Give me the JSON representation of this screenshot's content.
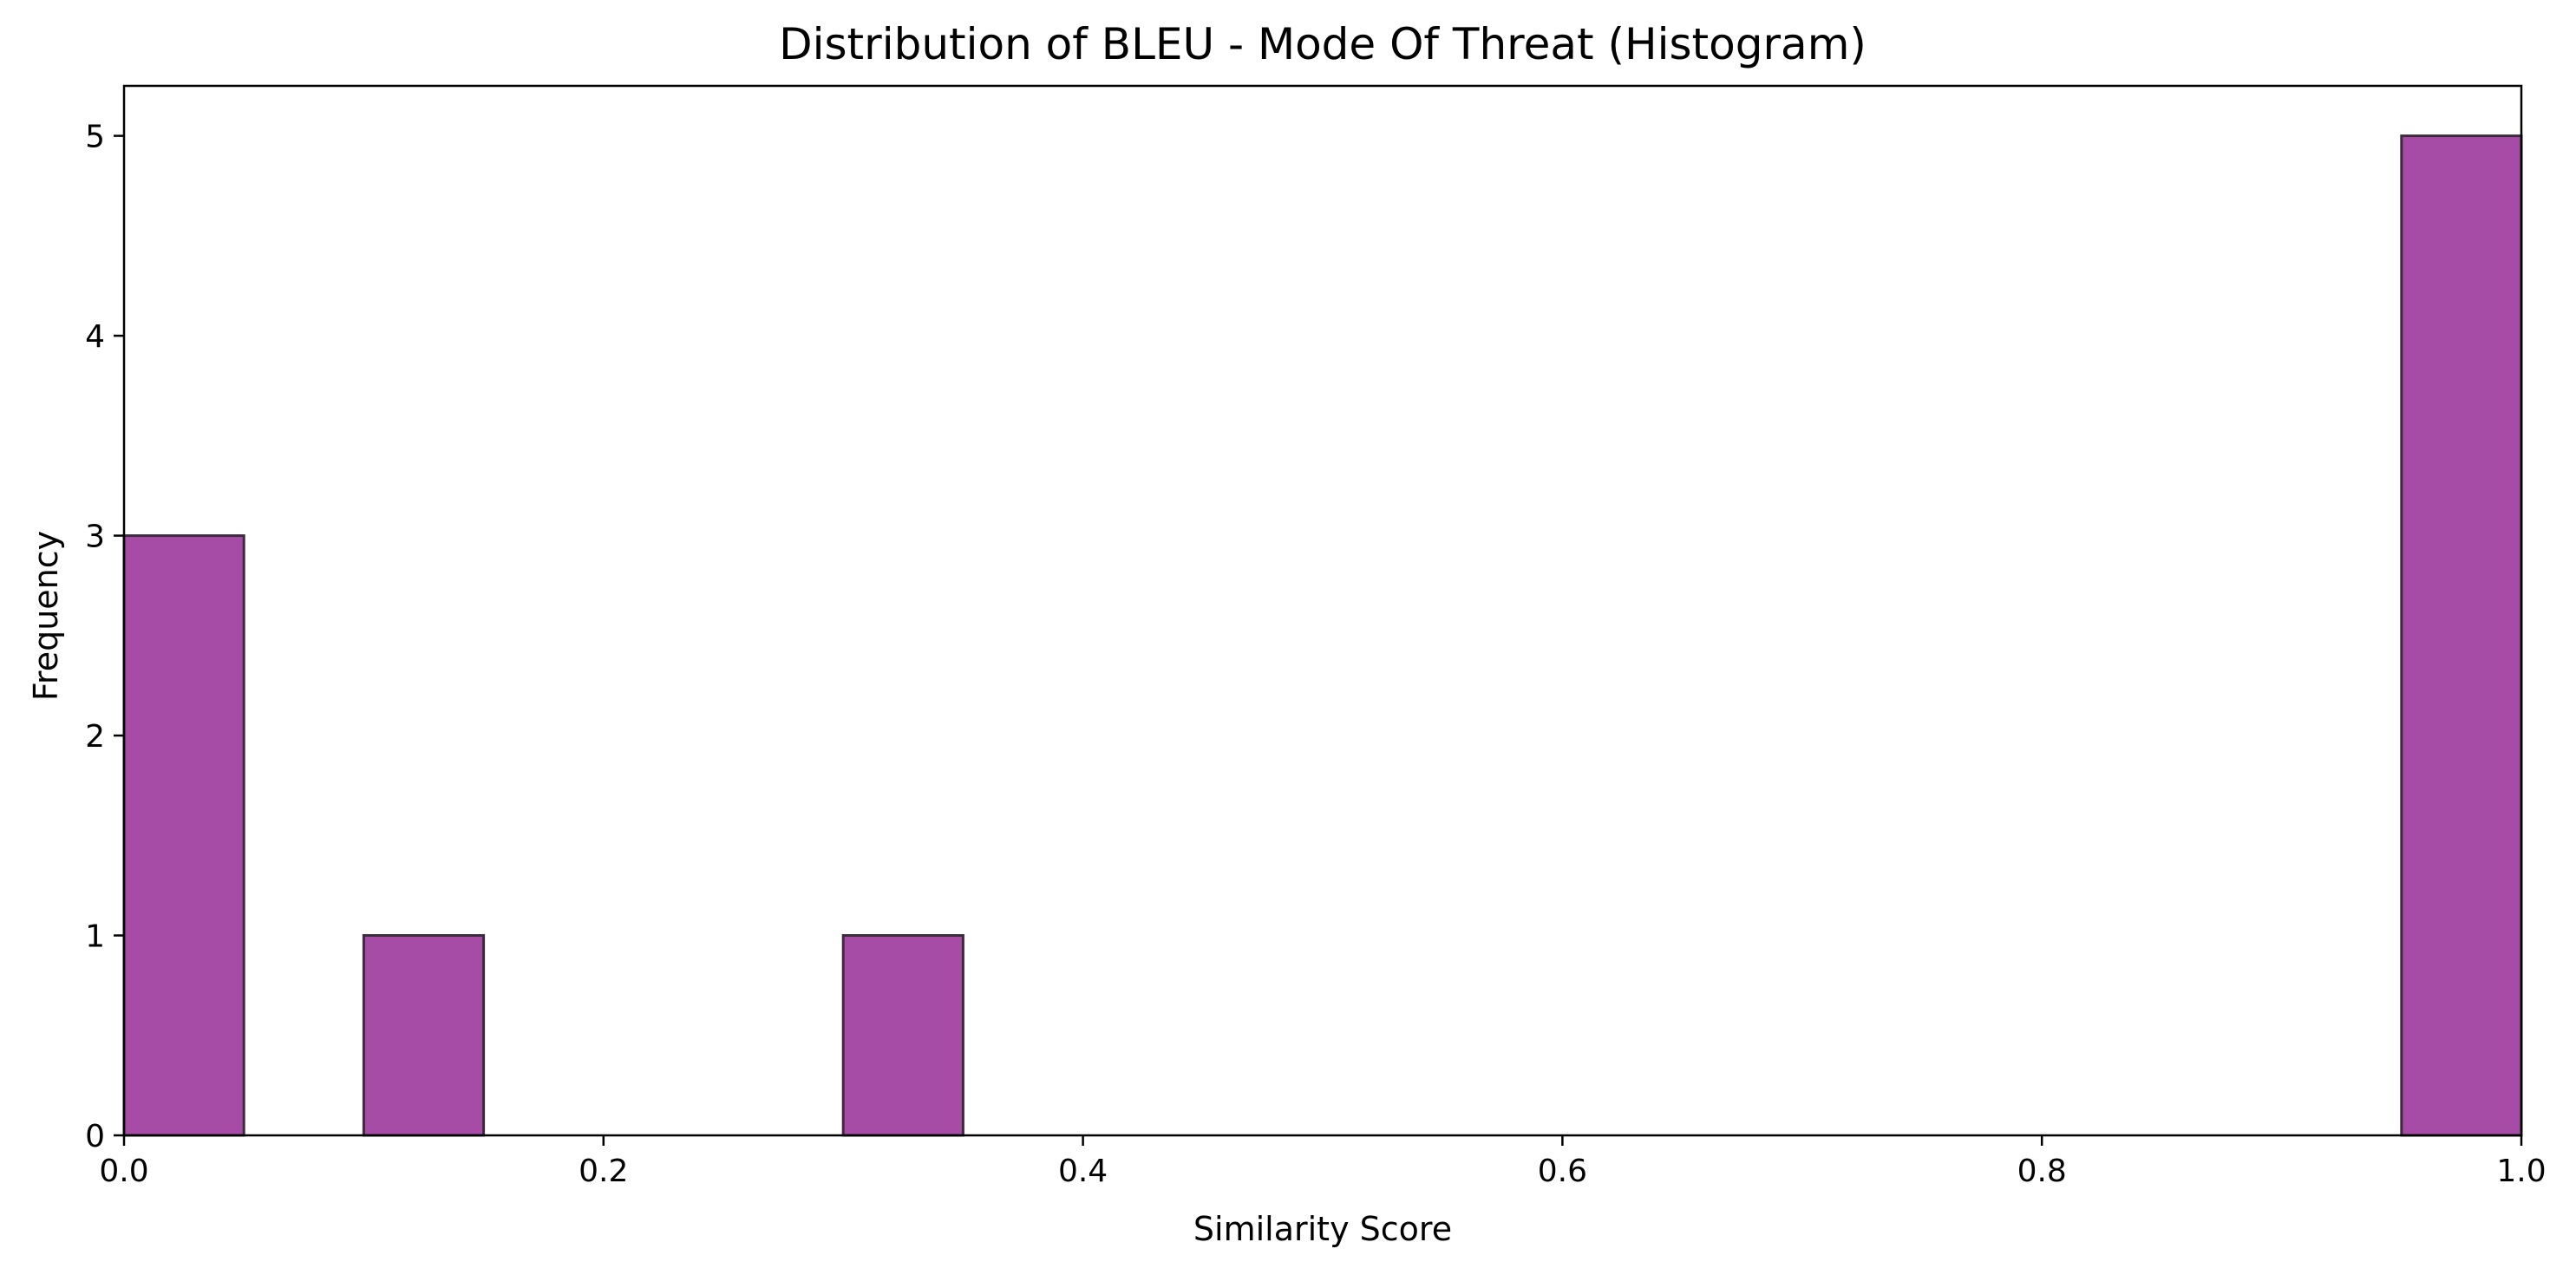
{
  "chart_data": {
    "type": "bar",
    "title": "Distribution of BLEU - Mode Of Threat (Histogram)",
    "xlabel": "Similarity Score",
    "ylabel": "Frequency",
    "xlim": [
      0.0,
      1.0
    ],
    "ylim": [
      0,
      5.25
    ],
    "x_ticks": [
      "0.0",
      "0.2",
      "0.4",
      "0.6",
      "0.8",
      "1.0"
    ],
    "y_ticks": [
      "0",
      "1",
      "2",
      "3",
      "4",
      "5"
    ],
    "bin_width": 0.05,
    "bins": [
      {
        "start": 0.0,
        "end": 0.05,
        "count": 3
      },
      {
        "start": 0.05,
        "end": 0.1,
        "count": 0
      },
      {
        "start": 0.1,
        "end": 0.15,
        "count": 1
      },
      {
        "start": 0.15,
        "end": 0.2,
        "count": 0
      },
      {
        "start": 0.2,
        "end": 0.25,
        "count": 0
      },
      {
        "start": 0.25,
        "end": 0.3,
        "count": 0
      },
      {
        "start": 0.3,
        "end": 0.35,
        "count": 1
      },
      {
        "start": 0.35,
        "end": 0.4,
        "count": 0
      },
      {
        "start": 0.4,
        "end": 0.45,
        "count": 0
      },
      {
        "start": 0.45,
        "end": 0.5,
        "count": 0
      },
      {
        "start": 0.5,
        "end": 0.55,
        "count": 0
      },
      {
        "start": 0.55,
        "end": 0.6,
        "count": 0
      },
      {
        "start": 0.6,
        "end": 0.65,
        "count": 0
      },
      {
        "start": 0.65,
        "end": 0.7,
        "count": 0
      },
      {
        "start": 0.7,
        "end": 0.75,
        "count": 0
      },
      {
        "start": 0.75,
        "end": 0.8,
        "count": 0
      },
      {
        "start": 0.8,
        "end": 0.85,
        "count": 0
      },
      {
        "start": 0.85,
        "end": 0.9,
        "count": 0
      },
      {
        "start": 0.9,
        "end": 0.95,
        "count": 0
      },
      {
        "start": 0.95,
        "end": 1.0,
        "count": 5
      }
    ],
    "grid": false,
    "legend": "none",
    "colors": {
      "bar_fill": "#a64ca6",
      "bar_edge": "#3d2a3d",
      "axis": "#000000",
      "background": "#ffffff"
    }
  }
}
